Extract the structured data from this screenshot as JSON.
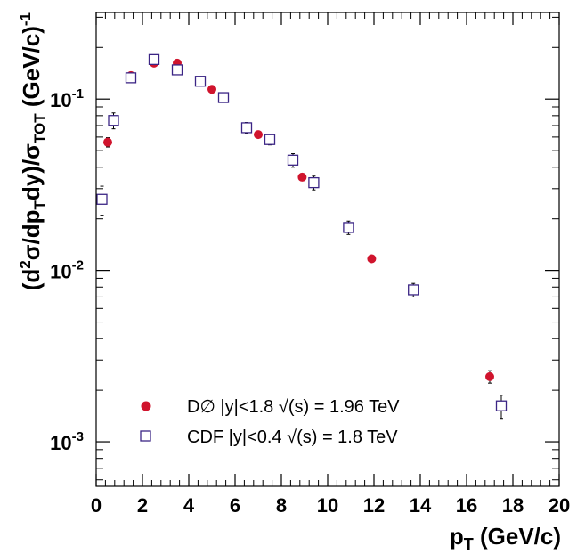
{
  "chart_data": {
    "type": "scatter",
    "xlabel": {
      "main": "p",
      "sub": "T",
      "rest": " (GeV/c)"
    },
    "ylabel": {
      "a": "(d",
      "sup1": "2",
      "b": "σ/dp",
      "sub1": "T",
      "c": "dy)/σ",
      "sub2": "TOT",
      "d": " (GeV/c)",
      "sup2": "-1"
    },
    "xlim": [
      0,
      20
    ],
    "ylim": [
      0.00055,
      0.32
    ],
    "yscale": "log",
    "x_ticks": [
      0,
      2,
      4,
      6,
      8,
      10,
      12,
      14,
      16,
      18,
      20
    ],
    "x_tick_labels": [
      "0",
      "2",
      "4",
      "6",
      "8",
      "10",
      "12",
      "14",
      "16",
      "18",
      "20"
    ],
    "y_major_ticks": [
      {
        "value": 0.1,
        "base": "10",
        "exp": "-1"
      },
      {
        "value": 0.01,
        "base": "10",
        "exp": "-2"
      },
      {
        "value": 0.001,
        "base": "10",
        "exp": "-3"
      }
    ],
    "legend_position": "bottom-left",
    "series": [
      {
        "name": "DØ |y|<1.8 √(s) = 1.96 TeV",
        "label": "D∅ |y|<1.8 √(s) = 1.96 TeV",
        "marker": "filled-circle",
        "color": "#d0142d",
        "points": [
          {
            "x": 0.5,
            "y": 0.056,
            "err": 0.0035
          },
          {
            "x": 1.5,
            "y": 0.137,
            "err": 0.006
          },
          {
            "x": 2.5,
            "y": 0.162,
            "err": 0.006
          },
          {
            "x": 3.5,
            "y": 0.162,
            "err": 0.006
          },
          {
            "x": 5.0,
            "y": 0.114,
            "err": 0.004
          },
          {
            "x": 7.0,
            "y": 0.062,
            "err": 0.0025
          },
          {
            "x": 8.9,
            "y": 0.035,
            "err": 0.0015
          },
          {
            "x": 11.9,
            "y": 0.0117,
            "err": 0.0005
          },
          {
            "x": 17.0,
            "y": 0.0024,
            "err": 0.0002
          }
        ]
      },
      {
        "name": "CDF |y|<0.4 √(s) = 1.8 TeV",
        "label": "CDF |y|<0.4 √(s) = 1.8 TeV",
        "marker": "open-square",
        "color": "#3b2585",
        "points": [
          {
            "x": 0.25,
            "y": 0.026,
            "err": 0.005
          },
          {
            "x": 0.75,
            "y": 0.075,
            "err": 0.008
          },
          {
            "x": 1.5,
            "y": 0.133,
            "err": 0.008
          },
          {
            "x": 2.5,
            "y": 0.17,
            "err": 0.008
          },
          {
            "x": 3.5,
            "y": 0.148,
            "err": 0.008
          },
          {
            "x": 4.5,
            "y": 0.127,
            "err": 0.007
          },
          {
            "x": 5.5,
            "y": 0.102,
            "err": 0.006
          },
          {
            "x": 6.5,
            "y": 0.068,
            "err": 0.005
          },
          {
            "x": 7.5,
            "y": 0.058,
            "err": 0.004
          },
          {
            "x": 8.5,
            "y": 0.044,
            "err": 0.004
          },
          {
            "x": 9.4,
            "y": 0.0325,
            "err": 0.003
          },
          {
            "x": 10.9,
            "y": 0.0178,
            "err": 0.0016
          },
          {
            "x": 13.7,
            "y": 0.0077,
            "err": 0.0007
          },
          {
            "x": 17.5,
            "y": 0.00162,
            "err": 0.00025
          }
        ]
      }
    ]
  }
}
